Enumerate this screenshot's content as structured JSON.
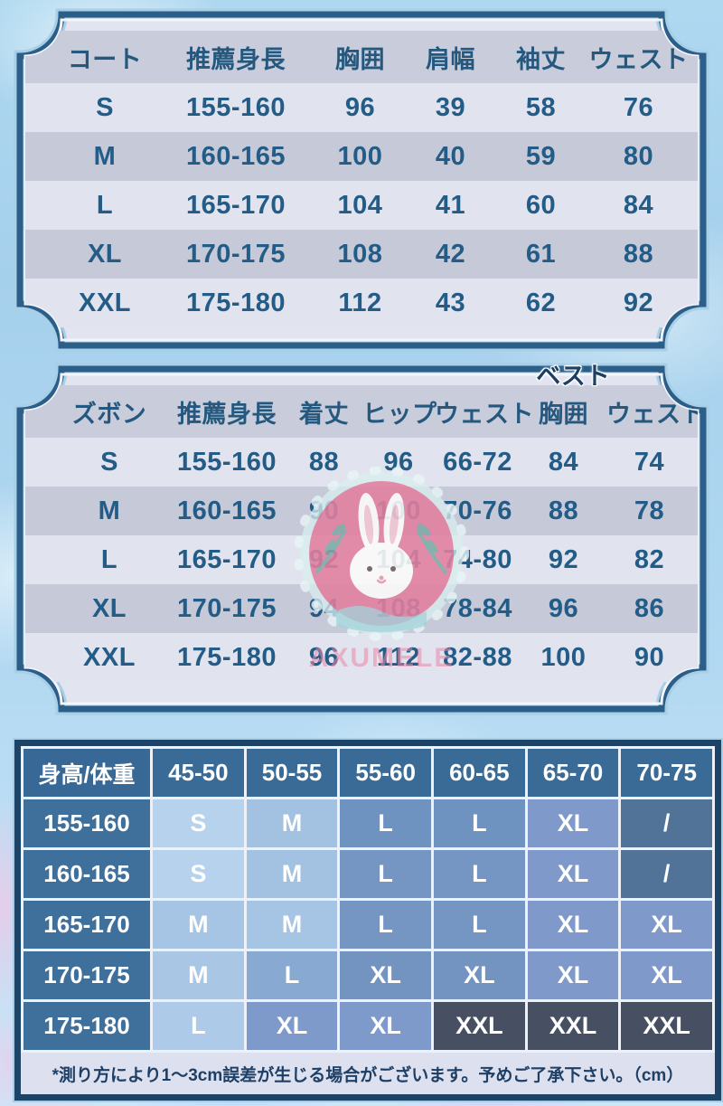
{
  "colors": {
    "frame_navy": "#2b5f8a",
    "frame_halo": "#a9cfe6",
    "row_light": "#e1e3ef",
    "row_dark": "#c6c9d8",
    "row_header": "#c9ccda",
    "table_text": "#235c86",
    "matrix_header_bg": "#3a6b97",
    "matrix_label_bg": "#3f6f9b",
    "watermark_pink": "#e2809f",
    "watermark_leaf": "#67b3a8"
  },
  "watermark": {
    "badge_icon": "rabbit-badge",
    "brand_text": "AXUMELE"
  },
  "chart_data": [
    {
      "type": "table",
      "title": "コート",
      "columns": [
        "コート",
        "推薦身長",
        "胸囲",
        "肩幅",
        "袖丈",
        "ウェスト"
      ],
      "rows": [
        [
          "S",
          "155-160",
          "96",
          "39",
          "58",
          "76"
        ],
        [
          "M",
          "160-165",
          "100",
          "40",
          "59",
          "80"
        ],
        [
          "L",
          "165-170",
          "104",
          "41",
          "60",
          "84"
        ],
        [
          "XL",
          "170-175",
          "108",
          "42",
          "61",
          "88"
        ],
        [
          "XXL",
          "175-180",
          "112",
          "43",
          "62",
          "92"
        ]
      ]
    },
    {
      "type": "table",
      "title": "ズボン",
      "overlay_label": "ベスト",
      "columns": [
        "ズボン",
        "推薦身長",
        "着丈",
        "ヒップ",
        "ウェスト",
        "胸囲",
        "ウェスト"
      ],
      "rows": [
        [
          "S",
          "155-160",
          "88",
          "96",
          "66-72",
          "84",
          "74"
        ],
        [
          "M",
          "160-165",
          "90",
          "100",
          "70-76",
          "88",
          "78"
        ],
        [
          "L",
          "165-170",
          "92",
          "104",
          "74-80",
          "92",
          "82"
        ],
        [
          "XL",
          "170-175",
          "94",
          "108",
          "78-84",
          "96",
          "86"
        ],
        [
          "XXL",
          "175-180",
          "96",
          "112",
          "82-88",
          "100",
          "90"
        ]
      ]
    },
    {
      "type": "table",
      "title": "身高/体重",
      "corner_header": "身高/体重",
      "weight_headers": [
        "45-50",
        "50-55",
        "55-60",
        "60-65",
        "65-70",
        "70-75"
      ],
      "rows": [
        {
          "height": "155-160",
          "cells": [
            {
              "v": "S",
              "c": "#b6d2ec"
            },
            {
              "v": "M",
              "c": "#a3c2e2"
            },
            {
              "v": "L",
              "c": "#6f93c0"
            },
            {
              "v": "L",
              "c": "#6f93c0"
            },
            {
              "v": "XL",
              "c": "#7e99ca"
            },
            {
              "v": "/",
              "c": "#527398"
            }
          ]
        },
        {
          "height": "160-165",
          "cells": [
            {
              "v": "S",
              "c": "#b6d2ec"
            },
            {
              "v": "M",
              "c": "#a3c2e2"
            },
            {
              "v": "L",
              "c": "#7596c2"
            },
            {
              "v": "L",
              "c": "#7596c2"
            },
            {
              "v": "XL",
              "c": "#7e99ca"
            },
            {
              "v": "/",
              "c": "#527398"
            }
          ]
        },
        {
          "height": "165-170",
          "cells": [
            {
              "v": "M",
              "c": "#a6c4e3"
            },
            {
              "v": "M",
              "c": "#a6c4e3"
            },
            {
              "v": "L",
              "c": "#7596c2"
            },
            {
              "v": "L",
              "c": "#7596c2"
            },
            {
              "v": "XL",
              "c": "#7e99ca"
            },
            {
              "v": "XL",
              "c": "#7e99ca"
            }
          ]
        },
        {
          "height": "170-175",
          "cells": [
            {
              "v": "M",
              "c": "#a9c6e4"
            },
            {
              "v": "L",
              "c": "#88aad2"
            },
            {
              "v": "XL",
              "c": "#7394c1"
            },
            {
              "v": "XL",
              "c": "#7394c1"
            },
            {
              "v": "XL",
              "c": "#7e99ca"
            },
            {
              "v": "XL",
              "c": "#7e99ca"
            }
          ]
        },
        {
          "height": "175-180",
          "cells": [
            {
              "v": "L",
              "c": "#adcae8"
            },
            {
              "v": "XL",
              "c": "#7e9aca"
            },
            {
              "v": "XL",
              "c": "#7e9aca"
            },
            {
              "v": "XXL",
              "c": "#474f63"
            },
            {
              "v": "XXL",
              "c": "#474f63"
            },
            {
              "v": "XXL",
              "c": "#474f63"
            }
          ]
        }
      ],
      "footnote": "*測り方により1～3cm誤差が生じる場合がございます。予めご了承下さい。（cm）"
    }
  ]
}
